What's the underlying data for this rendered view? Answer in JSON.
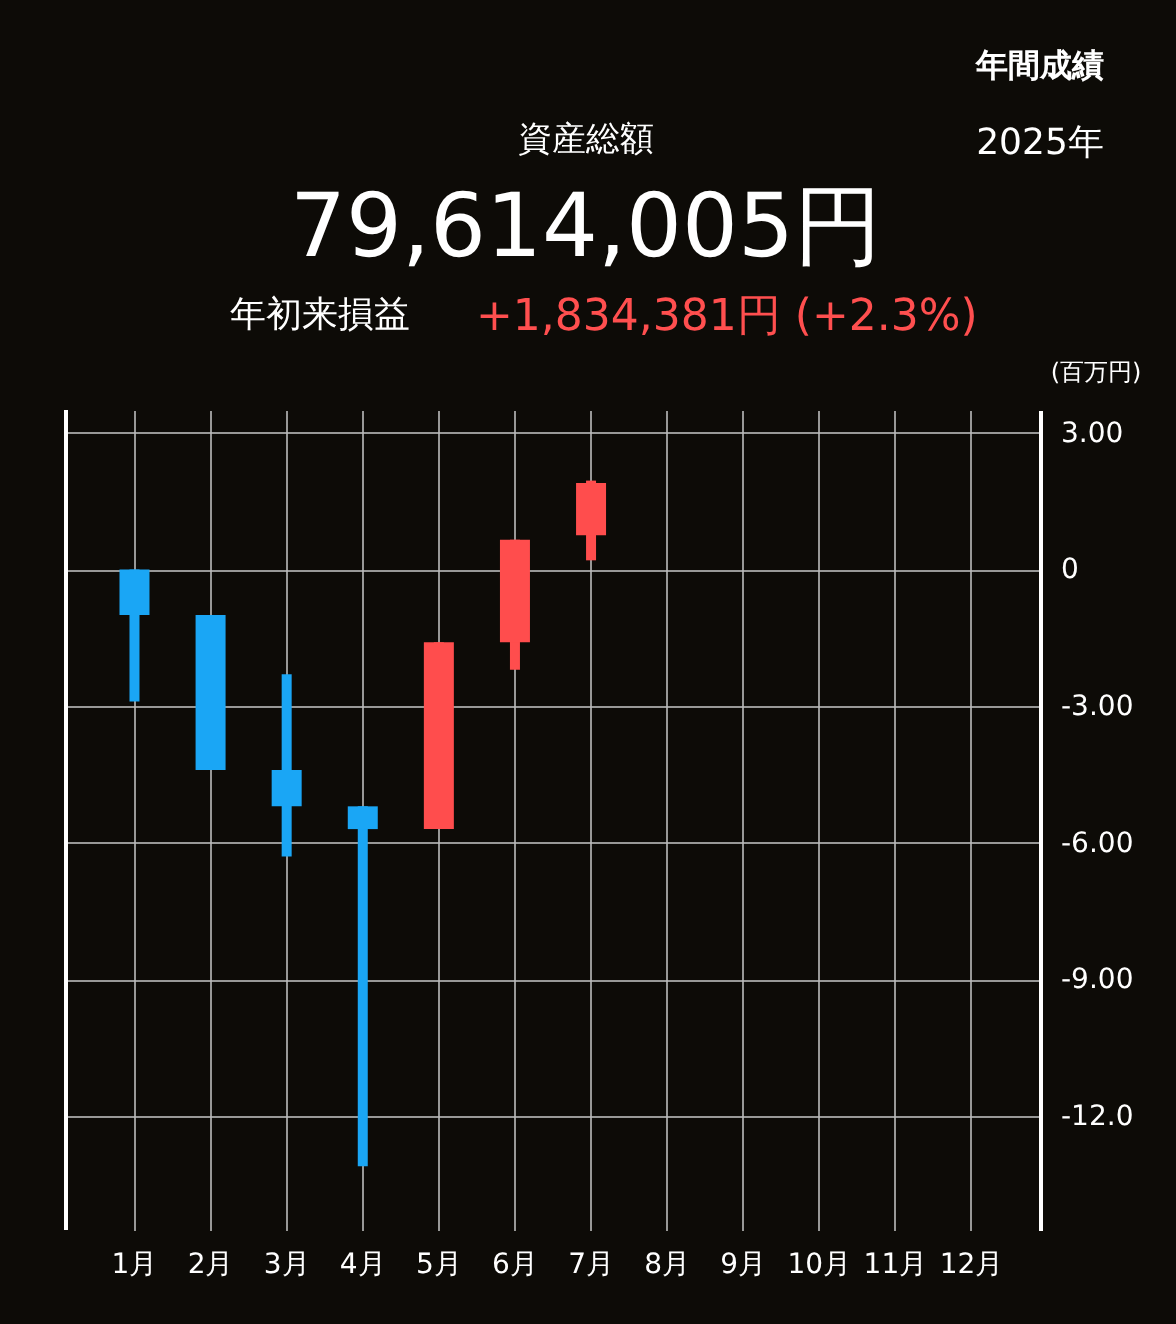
{
  "chart_data": {
    "type": "candlestick",
    "title": "資産総額",
    "subtitle": "79,614,005円",
    "ylabel": "(百万円)",
    "annotations": [
      "年間成績",
      "2025年",
      "年初来損益",
      "+1,834,381円 (+2.3%)"
    ],
    "categories": [
      "1月",
      "2月",
      "3月",
      "4月",
      "5月",
      "6月",
      "7月",
      "8月",
      "9月",
      "10月",
      "11月",
      "12月"
    ],
    "ohlc": [
      [
        0,
        0,
        -2.9,
        -1.0
      ],
      [
        -1.0,
        -1.0,
        -4.4,
        -4.4
      ],
      [
        -4.4,
        -2.3,
        -6.3,
        -5.2
      ],
      [
        -5.2,
        -5.2,
        -13.1,
        -5.7
      ],
      [
        -5.7,
        -1.6,
        -5.7,
        -1.6
      ],
      [
        -1.6,
        0.65,
        -2.2,
        0.65
      ],
      [
        0.75,
        1.95,
        0.2,
        1.9
      ],
      null,
      null,
      null,
      null,
      null
    ],
    "colors": [
      "#1aa6f5",
      "#1aa6f5",
      "#1aa6f5",
      "#1aa6f5",
      "#ff4d4d",
      "#ff4d4d",
      "#ff4d4d",
      null,
      null,
      null,
      null,
      null
    ],
    "ylim": [
      -14.5,
      3.5
    ],
    "yticks": [
      {
        "value": 3,
        "label": "3.00"
      },
      0,
      {
        "value": -3,
        "label": "-3.00"
      },
      {
        "value": -6,
        "label": "-6.00"
      },
      {
        "value": -9,
        "label": "-9.00"
      },
      {
        "value": -12,
        "label": "-12.0"
      }
    ],
    "grid": true
  }
}
